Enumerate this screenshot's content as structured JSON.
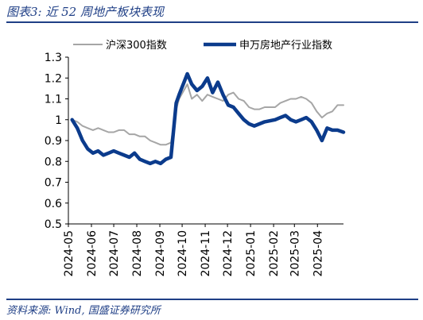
{
  "header": {
    "title": "图表3:  近 52 周地产板块表现"
  },
  "footer": {
    "source": "资料来源:  Wind,  国盛证券研究所"
  },
  "chart_data": {
    "type": "line",
    "title": "",
    "xlabel": "",
    "ylabel": "",
    "ylim": [
      0.5,
      1.3
    ],
    "yticks": [
      "0.5",
      "0.6",
      "0.7",
      "0.8",
      "0.9",
      "1",
      "1.1",
      "1.2",
      "1.3"
    ],
    "xticks": [
      "2024-05",
      "2024-06",
      "2024-07",
      "2024-08",
      "2024-09",
      "2024-10",
      "2024-11",
      "2024-12",
      "2025-01",
      "2025-02",
      "2025-03",
      "2025-04"
    ],
    "legend": "top",
    "series": [
      {
        "name": "沪深300指数",
        "color": "#a6a6a6",
        "x": [
          "2024-05-06",
          "2024-05-13",
          "2024-05-20",
          "2024-05-27",
          "2024-06-03",
          "2024-06-10",
          "2024-06-17",
          "2024-06-24",
          "2024-07-01",
          "2024-07-08",
          "2024-07-15",
          "2024-07-22",
          "2024-07-29",
          "2024-08-05",
          "2024-08-12",
          "2024-08-19",
          "2024-08-26",
          "2024-09-02",
          "2024-09-09",
          "2024-09-16",
          "2024-09-23",
          "2024-09-27",
          "2024-10-08",
          "2024-10-14",
          "2024-10-21",
          "2024-10-28",
          "2024-11-04",
          "2024-11-11",
          "2024-11-18",
          "2024-11-25",
          "2024-12-02",
          "2024-12-09",
          "2024-12-16",
          "2024-12-23",
          "2024-12-30",
          "2025-01-06",
          "2025-01-13",
          "2025-01-20",
          "2025-02-03",
          "2025-02-10",
          "2025-02-17",
          "2025-02-24",
          "2025-03-03",
          "2025-03-10",
          "2025-03-17",
          "2025-03-24",
          "2025-03-31",
          "2025-04-07",
          "2025-04-14",
          "2025-04-21",
          "2025-04-28",
          "2025-05-06"
        ],
        "values": [
          1.0,
          0.99,
          0.97,
          0.96,
          0.95,
          0.96,
          0.95,
          0.94,
          0.94,
          0.95,
          0.95,
          0.93,
          0.93,
          0.92,
          0.92,
          0.9,
          0.89,
          0.88,
          0.88,
          0.89,
          1.05,
          1.1,
          1.17,
          1.1,
          1.12,
          1.09,
          1.12,
          1.11,
          1.1,
          1.09,
          1.12,
          1.13,
          1.1,
          1.09,
          1.06,
          1.05,
          1.05,
          1.06,
          1.06,
          1.08,
          1.09,
          1.1,
          1.1,
          1.11,
          1.1,
          1.08,
          1.04,
          1.01,
          1.03,
          1.04,
          1.07,
          1.07
        ]
      },
      {
        "name": "申万房地产行业指数",
        "color": "#0b3b8c",
        "x": [
          "2024-05-06",
          "2024-05-13",
          "2024-05-20",
          "2024-05-27",
          "2024-06-03",
          "2024-06-10",
          "2024-06-17",
          "2024-06-24",
          "2024-07-01",
          "2024-07-08",
          "2024-07-15",
          "2024-07-22",
          "2024-07-29",
          "2024-08-05",
          "2024-08-12",
          "2024-08-19",
          "2024-08-26",
          "2024-09-02",
          "2024-09-09",
          "2024-09-16",
          "2024-09-23",
          "2024-09-27",
          "2024-10-08",
          "2024-10-14",
          "2024-10-21",
          "2024-10-28",
          "2024-11-04",
          "2024-11-11",
          "2024-11-18",
          "2024-11-25",
          "2024-12-02",
          "2024-12-09",
          "2024-12-16",
          "2024-12-23",
          "2024-12-30",
          "2025-01-06",
          "2025-01-13",
          "2025-01-20",
          "2025-02-03",
          "2025-02-10",
          "2025-02-17",
          "2025-02-24",
          "2025-03-03",
          "2025-03-10",
          "2025-03-17",
          "2025-03-24",
          "2025-03-31",
          "2025-04-07",
          "2025-04-14",
          "2025-04-21",
          "2025-04-28",
          "2025-05-06"
        ],
        "values": [
          1.0,
          0.96,
          0.9,
          0.86,
          0.84,
          0.85,
          0.83,
          0.84,
          0.85,
          0.84,
          0.83,
          0.82,
          0.84,
          0.81,
          0.8,
          0.79,
          0.8,
          0.79,
          0.81,
          0.82,
          1.08,
          1.12,
          1.22,
          1.17,
          1.14,
          1.16,
          1.2,
          1.13,
          1.18,
          1.12,
          1.07,
          1.06,
          1.03,
          1.0,
          0.98,
          0.97,
          0.98,
          0.99,
          1.0,
          1.01,
          1.02,
          1.0,
          0.99,
          1.0,
          1.01,
          0.99,
          0.95,
          0.9,
          0.96,
          0.95,
          0.95,
          0.94
        ]
      }
    ]
  }
}
